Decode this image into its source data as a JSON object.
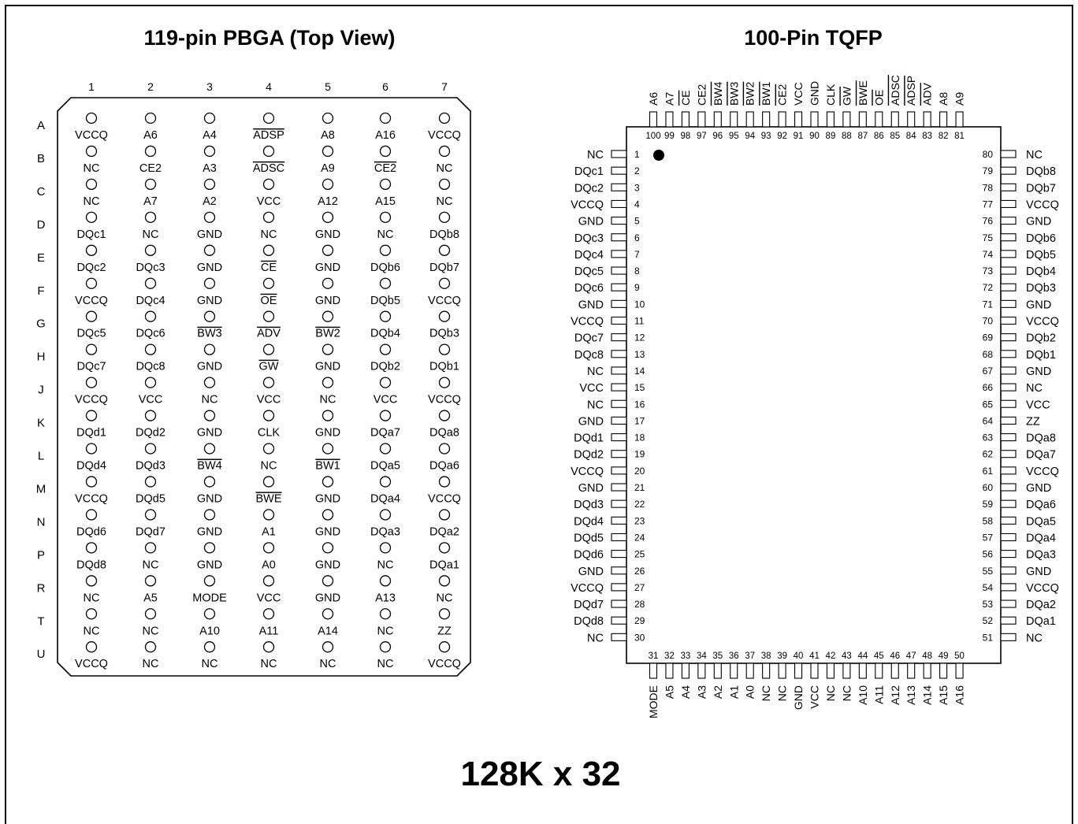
{
  "pbga": {
    "title": "119-pin PBGA (Top View)",
    "columns": [
      "1",
      "2",
      "3",
      "4",
      "5",
      "6",
      "7"
    ],
    "rows": [
      "A",
      "B",
      "C",
      "D",
      "E",
      "F",
      "G",
      "H",
      "J",
      "K",
      "L",
      "M",
      "N",
      "P",
      "R",
      "T",
      "U"
    ],
    "pins": [
      [
        "VCCQ",
        "A6",
        "A4",
        "~ADSP",
        "A8",
        "A16",
        "VCCQ"
      ],
      [
        "NC",
        "CE2",
        "A3",
        "~ADSC",
        "A9",
        "~CE2",
        "NC"
      ],
      [
        "NC",
        "A7",
        "A2",
        "VCC",
        "A12",
        "A15",
        "NC"
      ],
      [
        "DQc1",
        "NC",
        "GND",
        "NC",
        "GND",
        "NC",
        "DQb8"
      ],
      [
        "DQc2",
        "DQc3",
        "GND",
        "~CE",
        "GND",
        "DQb6",
        "DQb7"
      ],
      [
        "VCCQ",
        "DQc4",
        "GND",
        "~OE",
        "GND",
        "DQb5",
        "VCCQ"
      ],
      [
        "DQc5",
        "DQc6",
        "~BW3",
        "~ADV",
        "~BW2",
        "DQb4",
        "DQb3"
      ],
      [
        "DQc7",
        "DQc8",
        "GND",
        "~GW",
        "GND",
        "DQb2",
        "DQb1"
      ],
      [
        "VCCQ",
        "VCC",
        "NC",
        "VCC",
        "NC",
        "VCC",
        "VCCQ"
      ],
      [
        "DQd1",
        "DQd2",
        "GND",
        "CLK",
        "GND",
        "DQa7",
        "DQa8"
      ],
      [
        "DQd4",
        "DQd3",
        "~BW4",
        "NC",
        "~BW1",
        "DQa5",
        "DQa6"
      ],
      [
        "VCCQ",
        "DQd5",
        "GND",
        "~BWE",
        "GND",
        "DQa4",
        "VCCQ"
      ],
      [
        "DQd6",
        "DQd7",
        "GND",
        "A1",
        "GND",
        "DQa3",
        "DQa2"
      ],
      [
        "DQd8",
        "NC",
        "GND",
        "A0",
        "GND",
        "NC",
        "DQa1"
      ],
      [
        "NC",
        "A5",
        "MODE",
        "VCC",
        "GND",
        "A13",
        "NC"
      ],
      [
        "NC",
        "NC",
        "A10",
        "A11",
        "A14",
        "NC",
        "ZZ"
      ],
      [
        "VCCQ",
        "NC",
        "NC",
        "NC",
        "NC",
        "NC",
        "VCCQ"
      ]
    ]
  },
  "tqfp": {
    "title": "100-Pin TQFP",
    "left": [
      {
        "num": "1",
        "name": "NC"
      },
      {
        "num": "2",
        "name": "DQc1"
      },
      {
        "num": "3",
        "name": "DQc2"
      },
      {
        "num": "4",
        "name": "VCCQ"
      },
      {
        "num": "5",
        "name": "GND"
      },
      {
        "num": "6",
        "name": "DQc3"
      },
      {
        "num": "7",
        "name": "DQc4"
      },
      {
        "num": "8",
        "name": "DQc5"
      },
      {
        "num": "9",
        "name": "DQc6"
      },
      {
        "num": "10",
        "name": "GND"
      },
      {
        "num": "11",
        "name": "VCCQ"
      },
      {
        "num": "12",
        "name": "DQc7"
      },
      {
        "num": "13",
        "name": "DQc8"
      },
      {
        "num": "14",
        "name": "NC"
      },
      {
        "num": "15",
        "name": "VCC"
      },
      {
        "num": "16",
        "name": "NC"
      },
      {
        "num": "17",
        "name": "GND"
      },
      {
        "num": "18",
        "name": "DQd1"
      },
      {
        "num": "19",
        "name": "DQd2"
      },
      {
        "num": "20",
        "name": "VCCQ"
      },
      {
        "num": "21",
        "name": "GND"
      },
      {
        "num": "22",
        "name": "DQd3"
      },
      {
        "num": "23",
        "name": "DQd4"
      },
      {
        "num": "24",
        "name": "DQd5"
      },
      {
        "num": "25",
        "name": "DQd6"
      },
      {
        "num": "26",
        "name": "GND"
      },
      {
        "num": "27",
        "name": "VCCQ"
      },
      {
        "num": "28",
        "name": "DQd7"
      },
      {
        "num": "29",
        "name": "DQd8"
      },
      {
        "num": "30",
        "name": "NC"
      }
    ],
    "right": [
      {
        "num": "80",
        "name": "NC"
      },
      {
        "num": "79",
        "name": "DQb8"
      },
      {
        "num": "78",
        "name": "DQb7"
      },
      {
        "num": "77",
        "name": "VCCQ"
      },
      {
        "num": "76",
        "name": "GND"
      },
      {
        "num": "75",
        "name": "DQb6"
      },
      {
        "num": "74",
        "name": "DQb5"
      },
      {
        "num": "73",
        "name": "DQb4"
      },
      {
        "num": "72",
        "name": "DQb3"
      },
      {
        "num": "71",
        "name": "GND"
      },
      {
        "num": "70",
        "name": "VCCQ"
      },
      {
        "num": "69",
        "name": "DQb2"
      },
      {
        "num": "68",
        "name": "DQb1"
      },
      {
        "num": "67",
        "name": "GND"
      },
      {
        "num": "66",
        "name": "NC"
      },
      {
        "num": "65",
        "name": "VCC"
      },
      {
        "num": "64",
        "name": "ZZ"
      },
      {
        "num": "63",
        "name": "DQa8"
      },
      {
        "num": "62",
        "name": "DQa7"
      },
      {
        "num": "61",
        "name": "VCCQ"
      },
      {
        "num": "60",
        "name": "GND"
      },
      {
        "num": "59",
        "name": "DQa6"
      },
      {
        "num": "58",
        "name": "DQa5"
      },
      {
        "num": "57",
        "name": "DQa4"
      },
      {
        "num": "56",
        "name": "DQa3"
      },
      {
        "num": "55",
        "name": "GND"
      },
      {
        "num": "54",
        "name": "VCCQ"
      },
      {
        "num": "53",
        "name": "DQa2"
      },
      {
        "num": "52",
        "name": "DQa1"
      },
      {
        "num": "51",
        "name": "NC"
      }
    ],
    "top": [
      {
        "num": "100",
        "name": "A6"
      },
      {
        "num": "99",
        "name": "A7"
      },
      {
        "num": "98",
        "name": "~CE"
      },
      {
        "num": "97",
        "name": "CE2"
      },
      {
        "num": "96",
        "name": "~BW4"
      },
      {
        "num": "95",
        "name": "~BW3"
      },
      {
        "num": "94",
        "name": "~BW2"
      },
      {
        "num": "93",
        "name": "~BW1"
      },
      {
        "num": "92",
        "name": "~CE2"
      },
      {
        "num": "91",
        "name": "VCC"
      },
      {
        "num": "90",
        "name": "GND"
      },
      {
        "num": "89",
        "name": "CLK"
      },
      {
        "num": "88",
        "name": "~GW"
      },
      {
        "num": "87",
        "name": "~BWE"
      },
      {
        "num": "86",
        "name": "~OE"
      },
      {
        "num": "85",
        "name": "~ADSC"
      },
      {
        "num": "84",
        "name": "~ADSP"
      },
      {
        "num": "83",
        "name": "~ADV"
      },
      {
        "num": "82",
        "name": "A8"
      },
      {
        "num": "81",
        "name": "A9"
      }
    ],
    "bottom": [
      {
        "num": "31",
        "name": "MODE"
      },
      {
        "num": "32",
        "name": "A5"
      },
      {
        "num": "33",
        "name": "A4"
      },
      {
        "num": "34",
        "name": "A3"
      },
      {
        "num": "35",
        "name": "A2"
      },
      {
        "num": "36",
        "name": "A1"
      },
      {
        "num": "37",
        "name": "A0"
      },
      {
        "num": "38",
        "name": "NC"
      },
      {
        "num": "39",
        "name": "NC"
      },
      {
        "num": "40",
        "name": "GND"
      },
      {
        "num": "41",
        "name": "VCC"
      },
      {
        "num": "42",
        "name": "NC"
      },
      {
        "num": "43",
        "name": "NC"
      },
      {
        "num": "44",
        "name": "A10"
      },
      {
        "num": "45",
        "name": "A11"
      },
      {
        "num": "46",
        "name": "A12"
      },
      {
        "num": "47",
        "name": "A13"
      },
      {
        "num": "48",
        "name": "A14"
      },
      {
        "num": "49",
        "name": "A15"
      },
      {
        "num": "50",
        "name": "A16"
      }
    ]
  },
  "footer": {
    "title": "128K x 32"
  }
}
